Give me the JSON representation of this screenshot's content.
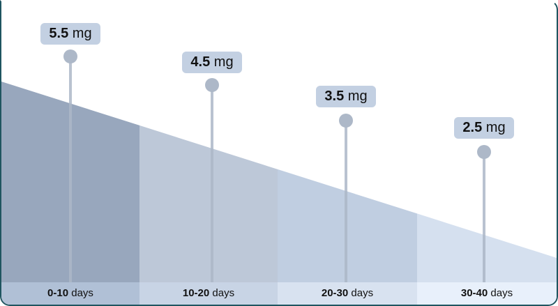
{
  "unit": "mg",
  "days_unit": "days",
  "stages": [
    {
      "range": "0-10",
      "dose": "5.5",
      "fill": "#98a7bd",
      "band": "#b0c0d6"
    },
    {
      "range": "10-20",
      "dose": "4.5",
      "fill": "#bdc8d8",
      "band": "#c8d4e5"
    },
    {
      "range": "20-30",
      "dose": "3.5",
      "fill": "#c0cee1",
      "band": "#d8e2f0"
    },
    {
      "range": "30-40",
      "dose": "2.5",
      "fill": "#d5e0ef",
      "band": "#e8f0fb"
    }
  ],
  "colors": {
    "border": "#1f5560",
    "pin": "#adb8c8",
    "label_bg": "#c3d0e2"
  }
}
